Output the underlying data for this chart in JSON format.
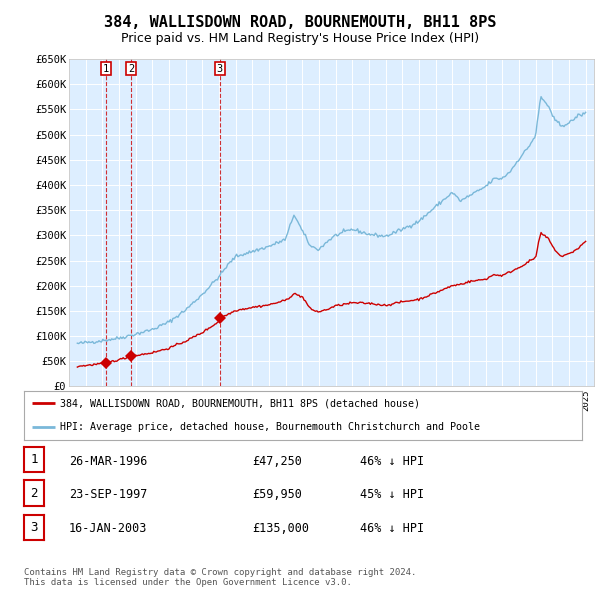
{
  "title": "384, WALLISDOWN ROAD, BOURNEMOUTH, BH11 8PS",
  "subtitle": "Price paid vs. HM Land Registry's House Price Index (HPI)",
  "title_fontsize": 11,
  "subtitle_fontsize": 9,
  "background_color": "#ffffff",
  "plot_bg_color": "#ddeeff",
  "grid_color": "#ffffff",
  "hpi_color": "#7ab8d9",
  "price_color": "#cc0000",
  "purchases": [
    {
      "date_num": 1996.23,
      "price": 47250,
      "label": "1"
    },
    {
      "date_num": 1997.73,
      "price": 59950,
      "label": "2"
    },
    {
      "date_num": 2003.05,
      "price": 135000,
      "label": "3"
    }
  ],
  "legend_entries": [
    "384, WALLISDOWN ROAD, BOURNEMOUTH, BH11 8PS (detached house)",
    "HPI: Average price, detached house, Bournemouth Christchurch and Poole"
  ],
  "table_rows": [
    {
      "num": "1",
      "date": "26-MAR-1996",
      "price": "£47,250",
      "hpi": "46% ↓ HPI"
    },
    {
      "num": "2",
      "date": "23-SEP-1997",
      "price": "£59,950",
      "hpi": "45% ↓ HPI"
    },
    {
      "num": "3",
      "date": "16-JAN-2003",
      "price": "£135,000",
      "hpi": "46% ↓ HPI"
    }
  ],
  "footer": "Contains HM Land Registry data © Crown copyright and database right 2024.\nThis data is licensed under the Open Government Licence v3.0.",
  "ylim": [
    0,
    650000
  ],
  "yticks": [
    0,
    50000,
    100000,
    150000,
    200000,
    250000,
    300000,
    350000,
    400000,
    450000,
    500000,
    550000,
    600000,
    650000
  ],
  "ytick_labels": [
    "£0",
    "£50K",
    "£100K",
    "£150K",
    "£200K",
    "£250K",
    "£300K",
    "£350K",
    "£400K",
    "£450K",
    "£500K",
    "£550K",
    "£600K",
    "£650K"
  ],
  "xlim_start": 1994.0,
  "xlim_end": 2025.5,
  "hpi_keypoints": [
    [
      1994.5,
      85000
    ],
    [
      1995.0,
      87000
    ],
    [
      1996.0,
      91000
    ],
    [
      1997.0,
      96000
    ],
    [
      1998.0,
      104000
    ],
    [
      1999.0,
      113000
    ],
    [
      2000.0,
      128000
    ],
    [
      2001.0,
      152000
    ],
    [
      2002.0,
      183000
    ],
    [
      2003.0,
      218000
    ],
    [
      2003.5,
      240000
    ],
    [
      2004.0,
      258000
    ],
    [
      2005.0,
      268000
    ],
    [
      2006.0,
      278000
    ],
    [
      2007.0,
      292000
    ],
    [
      2007.5,
      342000
    ],
    [
      2008.0,
      308000
    ],
    [
      2008.5,
      278000
    ],
    [
      2009.0,
      272000
    ],
    [
      2009.5,
      288000
    ],
    [
      2010.0,
      300000
    ],
    [
      2011.0,
      312000
    ],
    [
      2012.0,
      302000
    ],
    [
      2013.0,
      298000
    ],
    [
      2014.0,
      312000
    ],
    [
      2015.0,
      328000
    ],
    [
      2016.0,
      357000
    ],
    [
      2017.0,
      385000
    ],
    [
      2017.5,
      368000
    ],
    [
      2018.0,
      378000
    ],
    [
      2018.5,
      387000
    ],
    [
      2019.0,
      397000
    ],
    [
      2019.5,
      412000
    ],
    [
      2020.0,
      413000
    ],
    [
      2020.5,
      428000
    ],
    [
      2021.0,
      452000
    ],
    [
      2021.5,
      472000
    ],
    [
      2022.0,
      498000
    ],
    [
      2022.3,
      575000
    ],
    [
      2022.8,
      555000
    ],
    [
      2023.0,
      535000
    ],
    [
      2023.5,
      518000
    ],
    [
      2024.0,
      522000
    ],
    [
      2024.5,
      537000
    ],
    [
      2025.0,
      542000
    ]
  ],
  "price_keypoints": [
    [
      1994.5,
      40000
    ],
    [
      1995.0,
      41500
    ],
    [
      1996.0,
      45500
    ],
    [
      1996.23,
      47250
    ],
    [
      1997.0,
      53000
    ],
    [
      1997.73,
      59950
    ],
    [
      1998.0,
      61500
    ],
    [
      1999.0,
      67000
    ],
    [
      2000.0,
      76000
    ],
    [
      2001.0,
      90000
    ],
    [
      2002.0,
      107000
    ],
    [
      2003.0,
      129000
    ],
    [
      2003.05,
      135000
    ],
    [
      2004.0,
      151000
    ],
    [
      2005.0,
      157000
    ],
    [
      2006.0,
      162000
    ],
    [
      2007.0,
      171000
    ],
    [
      2007.5,
      184000
    ],
    [
      2008.0,
      178000
    ],
    [
      2008.5,
      153000
    ],
    [
      2009.0,
      148000
    ],
    [
      2009.5,
      153000
    ],
    [
      2010.0,
      160000
    ],
    [
      2011.0,
      166000
    ],
    [
      2012.0,
      165000
    ],
    [
      2013.0,
      161000
    ],
    [
      2014.0,
      168000
    ],
    [
      2015.0,
      173000
    ],
    [
      2016.0,
      186000
    ],
    [
      2017.0,
      200000
    ],
    [
      2017.5,
      203000
    ],
    [
      2018.0,
      208000
    ],
    [
      2019.0,
      213000
    ],
    [
      2019.5,
      222000
    ],
    [
      2020.0,
      220000
    ],
    [
      2020.5,
      228000
    ],
    [
      2021.0,
      236000
    ],
    [
      2021.5,
      246000
    ],
    [
      2022.0,
      256000
    ],
    [
      2022.3,
      305000
    ],
    [
      2022.8,
      292000
    ],
    [
      2023.0,
      278000
    ],
    [
      2023.5,
      258000
    ],
    [
      2024.0,
      263000
    ],
    [
      2024.5,
      273000
    ],
    [
      2025.0,
      288000
    ]
  ]
}
